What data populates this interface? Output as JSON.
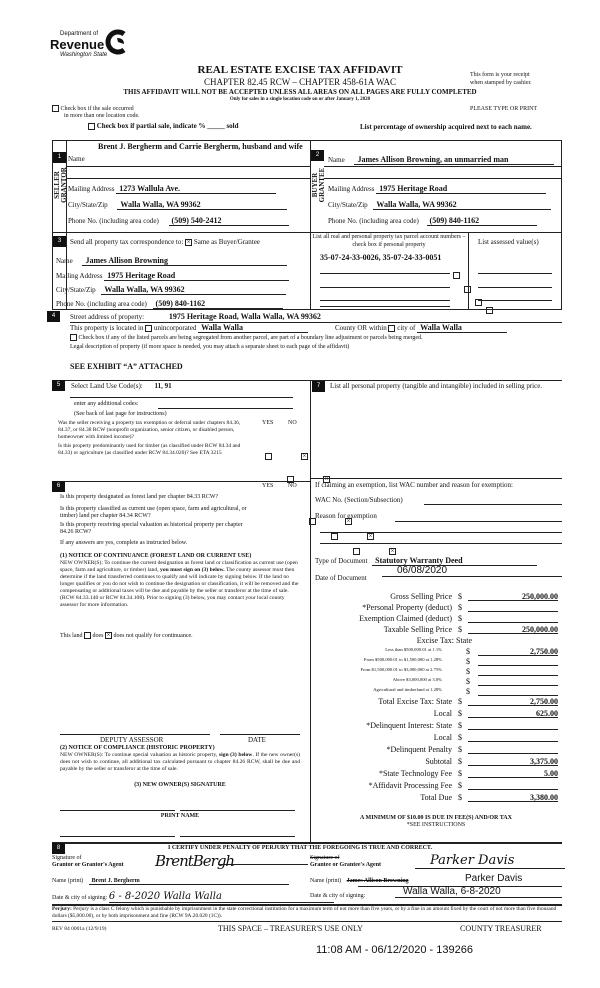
{
  "header": {
    "logo_line1": "Department of",
    "logo_line2": "Revenue",
    "logo_line3": "Washington State",
    "title": "REAL ESTATE EXCISE TAX AFFIDAVIT",
    "subtitle": "CHAPTER 82.45 RCW – CHAPTER 458-61A WAC",
    "warning": "THIS AFFIDAVIT WILL NOT BE ACCEPTED UNLESS ALL AREAS ON ALL PAGES ARE FULLY COMPLETED",
    "only_for": "Only for sales in a single location code on or after January 1, 2020",
    "receipt_note_1": "This form is your receipt",
    "receipt_note_2": "when stamped by cashier.",
    "multi_location_1": "Check box if the sale occurred",
    "multi_location_2": "in more than one location code.",
    "please_type": "PLEASE TYPE OR PRINT",
    "partial_sale": "Check box if partial sale, indicate % _____ sold",
    "list_percentage": "List percentage of ownership acquired next to each name."
  },
  "seller": {
    "section": "1",
    "side_label": "SELLER GRANTOR",
    "name_label": "Name",
    "name": "Brent J. Bergherm and Carrie Bergherm, husband and wife",
    "mailing_label": "Mailing Address",
    "mailing": "1273 Wallula Ave.",
    "city_label": "City/State/Zip",
    "city": "Walla Walla, WA 99362",
    "phone_label": "Phone No. (including area code)",
    "phone": "(509) 540-2412"
  },
  "buyer": {
    "section": "2",
    "side_label": "BUYER GRANTEE",
    "name_label": "Name",
    "name": "James Allison Browning, an unmarried man",
    "mailing_label": "Mailing Address",
    "mailing": "1975 Heritage Road",
    "city_label": "City/State/Zip",
    "city": "Walla Walla, WA 99362",
    "phone_label": "Phone No. (including area code)",
    "phone": "(509) 840-1162"
  },
  "correspondence": {
    "section": "3",
    "label": "Send all property tax correspondence to:",
    "same_label": "Same as Buyer/Grantee",
    "same_checked": true,
    "name_label": "Name",
    "name": "James Allison Browning",
    "mailing_label": "Mailing Address",
    "mailing": "1975 Heritage Road",
    "city_label": "City/State/Zip",
    "city": "Walla Walla, WA 99362",
    "phone_label": "Phone No. (including area code)",
    "phone": "(509) 840-1162",
    "parcel_header": "List all real and personal property tax parcel account numbers – check box if personal property",
    "assessed_header": "List assessed value(s)",
    "parcels": "35-07-24-33-0026, 35-07-24-33-0051"
  },
  "property": {
    "section": "4",
    "street_label": "Street address of property:",
    "street": "1975 Heritage Road, Walla Walla, WA  99362",
    "located_label": "This property is located in",
    "unincorporated_label": "unincorporated",
    "county": "Walla Walla",
    "county_or_label": "County OR  within",
    "city_of_label": "city of",
    "city": "Walla Walla",
    "segregated_label": "Check box if any of the listed parcels are being segregated from another parcel, are part of a boundary line adjustment or parcels being merged.",
    "legal_label": "Legal description of property (if more space is needed, you may attach a separate sheet to each page of the affidavit)",
    "legal": "SEE EXHIBIT “A” ATTACHED"
  },
  "land_use": {
    "section": "5",
    "label": "Select Land Use Code(s):",
    "codes": "11, 91",
    "additional_label": "enter any additional codes:",
    "see_back": "(See back of last page for instructions)",
    "yes": "YES",
    "no": "NO",
    "q1": "Was the seller receiving a property tax exemption or deferral under chapters 84.36, 84.37, or 84.38 RCW (nonprofit organization, senior citizen, or disabled person, homeowner with limited income)?",
    "q2": "Is this property predominantly used for timber (as classified under RCW 84.34 and 84.33) or agriculture (as classified under RCW 84.34.020)? See ETA 3215"
  },
  "section6": {
    "section": "6",
    "yes": "YES",
    "no": "NO",
    "q1": "Is this property designated as forest land per chapter 84.33 RCW?",
    "q2": "Is this property classified as current use (open space, farm and agricultural, or timber) land per chapter 84.34 RCW?",
    "q3": "Is this property receiving special valuation as historical property per chapter 84.26 RCW?",
    "if_yes": "If any answers are yes, complete as instructed below.",
    "notice1_title": "(1) NOTICE OF CONTINUANCE (FOREST LAND OR CURRENT USE)",
    "notice1_a": "NEW OWNER(S): To continue the current designation as forest land or classification as current use (open space, farm and agriculture, or timber) land, ",
    "notice1_bold": "you must sign on (3) below.",
    "notice1_b": " The county assessor must then determine if the land transferred continues to qualify and will indicate by signing below. If the land no longer qualifies or you do not wish to continue the designation or classification, it will be removed and the compensating or additional taxes will be due and payable by the seller or transferor at the time of sale. (RCW 84.33.140 or RCW 84.34.108). Prior to signing (3) below, you may contact your local county assessor for more information.",
    "this_land": "This land",
    "does": "does",
    "does_not": "does not qualify for continuance.",
    "deputy": "DEPUTY ASSESSOR",
    "date": "DATE",
    "notice2_title": "(2) NOTICE OF COMPLIANCE (HISTORIC PROPERTY)",
    "notice2_a": "NEW OWNER(S): To continue special valuation as historic property, ",
    "notice2_bold": "sign (3) below",
    "notice2_b": ". If the new owner(s) does not wish to continue, all additional tax calculated pursuant to chapter 84.26 RCW, shall be due and payable by the seller or transferor at the time of sale.",
    "new_owner_sig": "(3) NEW OWNER(S) SIGNATURE",
    "print_name": "PRINT NAME"
  },
  "section7": {
    "section": "7",
    "personal_property": "List all personal property (tangible and intangible) included in selling price.",
    "exemption": "If claiming an exemption, list WAC number and reason for exemption:",
    "wac_label": "WAC No. (Section/Subsection)",
    "reason_label": "Reason for exemption",
    "doc_type_label": "Type of Document",
    "doc_type": "Statutory Warranty Deed",
    "doc_date_label": "Date of Document",
    "doc_date": "06/08/2020",
    "excise_header": "Excise Tax: State",
    "minimum": "A MINIMUM OF $10.00 IS DUE IN FEE(S) AND/OR TAX",
    "see_instructions": "*SEE INSTRUCTIONS",
    "fees": [
      {
        "label": "Gross Selling Price",
        "value": "250,000.00"
      },
      {
        "label": "*Personal Property (deduct)",
        "value": ""
      },
      {
        "label": "Exemption Claimed (deduct)",
        "value": ""
      },
      {
        "label": "Taxable Selling Price",
        "value": "250,000.00"
      }
    ],
    "tiers": [
      {
        "label": "Less than $500,000.01 at 1.1%",
        "value": "2,750.00"
      },
      {
        "label": "From $500,000.01 to $1,500,000 at 1.28%",
        "value": ""
      },
      {
        "label": "From $1,500,000.01 to $3,000,000 at 2.75%",
        "value": ""
      },
      {
        "label": "Above $3,000,000 at 3.0%",
        "value": ""
      },
      {
        "label": "Agricultural and timberland at 1.28%",
        "value": ""
      }
    ],
    "totals": [
      {
        "label": "Total Excise Tax: State",
        "value": "2,750.00"
      },
      {
        "label": "Local",
        "value": "625.00"
      },
      {
        "label": "*Delinquent Interest: State",
        "value": ""
      },
      {
        "label": "Local",
        "value": ""
      },
      {
        "label": "*Delinquent Penalty",
        "value": ""
      },
      {
        "label": "Subtotal",
        "value": "3,375.00"
      },
      {
        "label": "*State Technology Fee",
        "value": "5.00"
      },
      {
        "label": "*Affidavit Processing Fee",
        "value": ""
      },
      {
        "label": "Total Due",
        "value": "3,380.00"
      }
    ],
    "dollar": "$"
  },
  "certify": {
    "section": "8",
    "title": "I CERTIFY UNDER PENALTY OF PERJURY THAT THE FOREGOING IS TRUE AND CORRECT.",
    "grantor_sig_label1": "Signature of",
    "grantor_sig_label2": "Grantor or Grantor's Agent",
    "grantor_signature": "BrentBergh",
    "grantor_name_label": "Name (print)",
    "grantor_name": "Brent J. Bergherm",
    "grantor_date_label": "Date & city of signing:",
    "grantor_date": "6 - 8-2020    Walla Walla",
    "grantee_sig_label1": "Signature of",
    "grantee_sig_label2": "Grantee or Grantee's Agent",
    "grantee_signature": "Parker Davis",
    "grantee_name_label": "Name (print)",
    "grantee_name_struck": "James Allison Browning",
    "grantee_name": "Parker Davis",
    "grantee_date_label": "Date & city of signing:",
    "grantee_date": "Walla Walla, 6-8-2020"
  },
  "footer": {
    "perjury_label": "Perjury:",
    "perjury": " Perjury is a class C felony which is punishable by imprisonment in the state correctional institution for a maximum term of not more than five years, or by a fine in an amount fixed by the court of not more than five thousand dollars ($5,000.00), or by both imprisonment and fine (RCW 9A.20.020 (1C)).",
    "rev": "REV 84 0001a (12/9/19)",
    "treasurer_space": "THIS SPACE – TREASURER'S USE ONLY",
    "county_treasurer": "COUNTY TREASURER",
    "stamp": "11:08 AM - 06/12/2020 - 139266"
  }
}
